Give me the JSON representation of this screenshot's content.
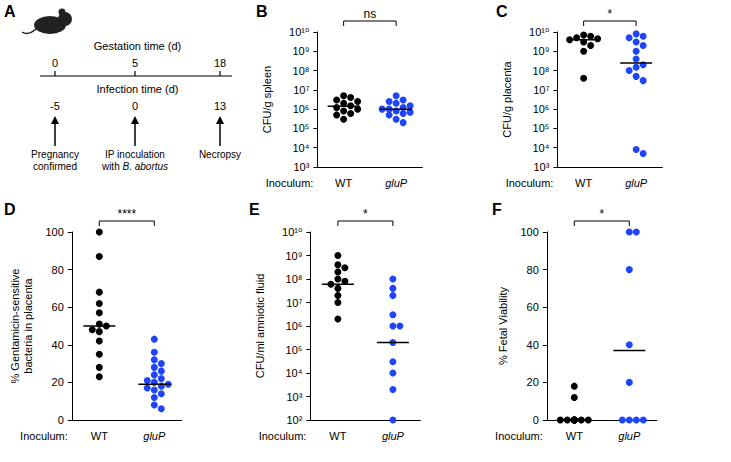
{
  "diagram": {
    "panel_label": "A",
    "timelines": [
      {
        "label": "Gestation time (d)",
        "ticks": [
          0,
          5,
          18
        ]
      },
      {
        "label": "Infection time (d)",
        "ticks": [
          -5,
          0,
          13
        ]
      }
    ],
    "events": [
      {
        "label": "Pregnancy confirmed"
      },
      {
        "label": "IP inoculation with B. abortus",
        "italic_part": "B. abortus"
      },
      {
        "label": "Necropsy"
      }
    ]
  },
  "chart_data": [
    {
      "type": "scatter",
      "panel_label": "B",
      "ylabel": "CFU/g spleen",
      "xlabel": "Inoculum:",
      "categories": [
        "WT",
        "gluP"
      ],
      "values": [
        [
          5000000.0,
          4000000.0,
          3000000.0,
          2500000.0,
          2000000.0,
          1500000.0,
          1200000.0,
          1000000.0,
          800000.0,
          600000.0,
          500000.0,
          300000.0
        ],
        [
          5000000.0,
          3000000.0,
          2500000.0,
          2000000.0,
          1500000.0,
          1200000.0,
          1000000.0,
          1000000.0,
          800000.0,
          700000.0,
          600000.0,
          500000.0,
          300000.0,
          200000.0
        ]
      ],
      "line_values": [
        1400000.0,
        1000000.0
      ],
      "colors": [
        "#000000",
        "#1f45fc"
      ],
      "marker": "circle",
      "log": "y",
      "ylim": [
        1000,
        10000000000
      ],
      "yticks": [
        {
          "value": 1000,
          "label": "10³"
        },
        {
          "value": 10000,
          "label": "10⁴"
        },
        {
          "value": 100000,
          "label": "10⁵"
        },
        {
          "value": 1000000,
          "label": "10⁶"
        },
        {
          "value": 10000000,
          "label": "10⁷"
        },
        {
          "value": 100000000,
          "label": "10⁸"
        },
        {
          "value": 1000000000,
          "label": "10⁹"
        },
        {
          "value": 10000000000,
          "label": "10¹⁰"
        }
      ],
      "grid": false,
      "annotations": [
        {
          "text": "ns",
          "between": [
            "WT",
            "gluP"
          ]
        }
      ]
    },
    {
      "type": "scatter",
      "panel_label": "C",
      "ylabel": "CFU/g placenta",
      "xlabel": "Inoculum:",
      "categories": [
        "WT",
        "gluP"
      ],
      "values": [
        [
          7000000000.0,
          6000000000.0,
          5000000000.0,
          4500000000.0,
          4000000000.0,
          3000000000.0,
          2000000000.0,
          1000000000.0,
          40000000.0
        ],
        [
          8000000000.0,
          6000000000.0,
          5000000000.0,
          3000000000.0,
          2000000000.0,
          1000000000.0,
          400000000.0,
          200000000.0,
          150000000.0,
          100000000.0,
          50000000.0,
          30000000.0,
          8000.0,
          5000.0
        ]
      ],
      "line_values": [
        4000000000.0,
        250000000.0
      ],
      "colors": [
        "#000000",
        "#1f45fc"
      ],
      "marker": "circle",
      "log": "y",
      "ylim": [
        1000,
        10000000000
      ],
      "yticks": [
        {
          "value": 1000,
          "label": "10³"
        },
        {
          "value": 10000,
          "label": "10⁴"
        },
        {
          "value": 100000,
          "label": "10⁵"
        },
        {
          "value": 1000000,
          "label": "10⁶"
        },
        {
          "value": 10000000,
          "label": "10⁷"
        },
        {
          "value": 100000000,
          "label": "10⁸"
        },
        {
          "value": 1000000000,
          "label": "10⁹"
        },
        {
          "value": 10000000000,
          "label": "10¹⁰"
        }
      ],
      "grid": false,
      "annotations": [
        {
          "text": "*",
          "between": [
            "WT",
            "gluP"
          ]
        }
      ]
    },
    {
      "type": "scatter",
      "panel_label": "D",
      "ylabel": "% Gentamicin-sensitive bacteria in placenta",
      "xlabel": "Inoculum:",
      "categories": [
        "WT",
        "gluP"
      ],
      "values": [
        [
          100,
          87,
          68,
          62,
          57,
          51,
          50,
          48,
          47,
          42,
          35,
          28,
          23
        ],
        [
          43,
          36,
          32,
          30,
          28,
          26,
          24,
          22,
          21,
          20,
          19,
          18,
          17,
          16,
          14,
          12,
          8,
          6
        ]
      ],
      "line_values": [
        50,
        19
      ],
      "colors": [
        "#000000",
        "#1f45fc"
      ],
      "marker": "circle",
      "ylim": [
        0,
        100
      ],
      "yticks": [
        0,
        20,
        40,
        60,
        80,
        100
      ],
      "grid": false,
      "annotations": [
        {
          "text": "****",
          "between": [
            "WT",
            "gluP"
          ]
        }
      ]
    },
    {
      "type": "scatter",
      "panel_label": "E",
      "ylabel": "CFU/ml amniotic fluid",
      "xlabel": "Inoculum:",
      "categories": [
        "WT",
        "gluP"
      ],
      "values": [
        [
          1000000000.0,
          400000000.0,
          300000000.0,
          200000000.0,
          100000000.0,
          80000000.0,
          60000000.0,
          40000000.0,
          20000000.0,
          10000000.0,
          2000000.0
        ],
        [
          100000000.0,
          40000000.0,
          20000000.0,
          3000000.0,
          1000000.0,
          1000000.0,
          200000.0,
          30000.0,
          10000.0,
          2000.0,
          100
        ]
      ],
      "line_values": [
        60000000.0,
        200000.0
      ],
      "colors": [
        "#000000",
        "#1f45fc"
      ],
      "marker": "circle",
      "log": "y",
      "ylim": [
        100,
        10000000000
      ],
      "yticks": [
        {
          "value": 100,
          "label": "10²"
        },
        {
          "value": 1000,
          "label": "10³"
        },
        {
          "value": 10000,
          "label": "10⁴"
        },
        {
          "value": 100000,
          "label": "10⁵"
        },
        {
          "value": 1000000,
          "label": "10⁶"
        },
        {
          "value": 10000000,
          "label": "10⁷"
        },
        {
          "value": 100000000,
          "label": "10⁸"
        },
        {
          "value": 1000000000,
          "label": "10⁹"
        },
        {
          "value": 10000000000,
          "label": "10¹⁰"
        }
      ],
      "grid": false,
      "annotations": [
        {
          "text": "*",
          "between": [
            "WT",
            "gluP"
          ]
        }
      ]
    },
    {
      "type": "scatter",
      "panel_label": "F",
      "ylabel": "% Fetal Viability",
      "xlabel": "Inoculum:",
      "categories": [
        "WT",
        "gluP"
      ],
      "values": [
        [
          18,
          12,
          0,
          0,
          0,
          0,
          0,
          0,
          0,
          0,
          0,
          0
        ],
        [
          100,
          100,
          80,
          40,
          20,
          0,
          0,
          0,
          0
        ]
      ],
      "line_values": [
        0,
        37
      ],
      "colors": [
        "#000000",
        "#1f45fc"
      ],
      "marker": "circle",
      "ylim": [
        0,
        100
      ],
      "yticks": [
        0,
        20,
        40,
        60,
        80,
        100
      ],
      "grid": false,
      "annotations": [
        {
          "text": "*",
          "between": [
            "WT",
            "gluP"
          ]
        }
      ]
    }
  ]
}
